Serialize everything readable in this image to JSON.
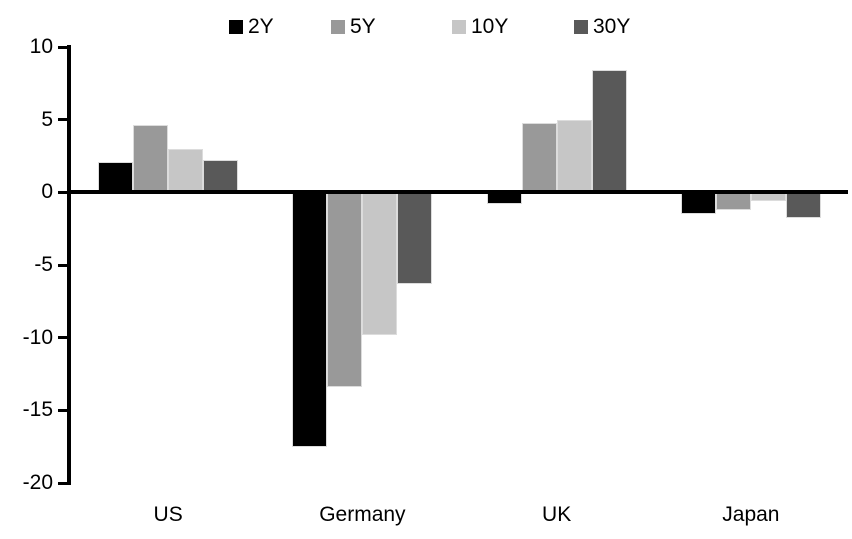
{
  "chart_data": {
    "type": "bar",
    "title": "",
    "categories": [
      "US",
      "Germany",
      "UK",
      "Japan"
    ],
    "series": [
      {
        "name": "2Y",
        "color": "#000000",
        "values": [
          2.1,
          -17.5,
          -0.8,
          -1.5
        ]
      },
      {
        "name": "5Y",
        "color": "#999999",
        "values": [
          4.6,
          -13.4,
          4.8,
          -1.2
        ]
      },
      {
        "name": "10Y",
        "color": "#c6c6c6",
        "values": [
          3.0,
          -9.8,
          5.0,
          -0.6
        ]
      },
      {
        "name": "30Y",
        "color": "#595959",
        "values": [
          2.2,
          -6.3,
          8.4,
          -1.8
        ]
      }
    ],
    "ylim": [
      -20,
      10
    ],
    "yticks": [
      10,
      5,
      0,
      -5,
      -10,
      -15,
      -20
    ],
    "legend_position": "top",
    "grid": false,
    "axis_color": "#000000",
    "bar_border_color": "#dcdcdc",
    "background": "#ffffff"
  }
}
